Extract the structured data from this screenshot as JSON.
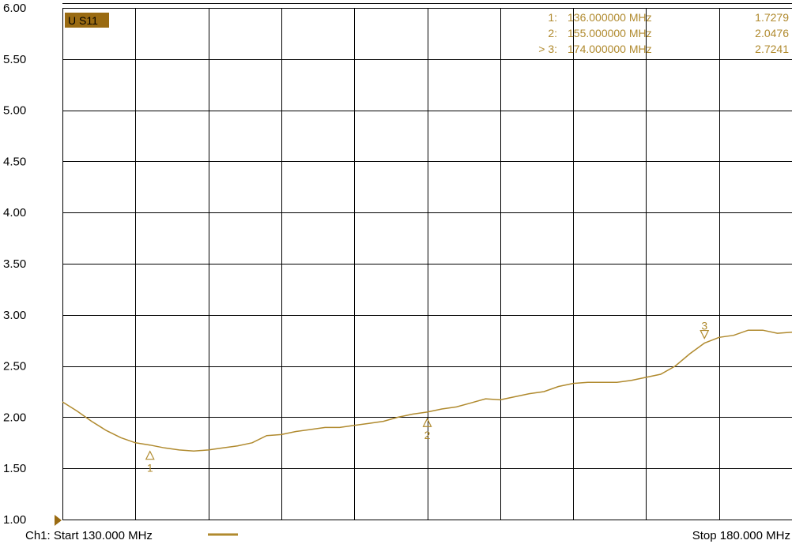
{
  "colors": {
    "trace": "#b08a2e",
    "grid": "#000000",
    "badge_bg": "#9a6b12",
    "background": "#ffffff"
  },
  "trace_badge": "U S11",
  "footer": {
    "start": "Ch1: Start  130.000 MHz",
    "stop": "Stop  180.000 MHz"
  },
  "markers": [
    {
      "num": "1:",
      "freq": "136.000000 MHz",
      "value": "1.7279",
      "active": false
    },
    {
      "num": "2:",
      "freq": "155.000000 MHz",
      "value": "2.0476",
      "active": false
    },
    {
      "num": "> 3:",
      "freq": "174.000000 MHz",
      "value": "2.7241",
      "active": true
    }
  ],
  "chart_data": {
    "type": "line",
    "title": "",
    "xlabel": "",
    "ylabel": "",
    "xlim": [
      130,
      180
    ],
    "ylim": [
      1.0,
      6.0
    ],
    "yticks": [
      "1.00",
      "1.50",
      "2.00",
      "2.50",
      "3.00",
      "3.50",
      "4.00",
      "4.50",
      "5.00",
      "5.50",
      "6.00"
    ],
    "grid": true,
    "x_divisions": 10,
    "series": [
      {
        "x": [
          130,
          131,
          132,
          133,
          134,
          135,
          136,
          137,
          138,
          139,
          140,
          141,
          142,
          143,
          144,
          145,
          146,
          147,
          148,
          149,
          150,
          151,
          152,
          153,
          154,
          155,
          156,
          157,
          158,
          159,
          160,
          161,
          162,
          163,
          164,
          165,
          166,
          167,
          168,
          169,
          170,
          171,
          172,
          173,
          174,
          175,
          176,
          177,
          178,
          179,
          180
        ],
        "y": [
          2.15,
          2.06,
          1.96,
          1.87,
          1.8,
          1.75,
          1.728,
          1.7,
          1.68,
          1.67,
          1.68,
          1.7,
          1.72,
          1.75,
          1.82,
          1.83,
          1.86,
          1.88,
          1.9,
          1.9,
          1.92,
          1.94,
          1.96,
          2.0,
          2.03,
          2.05,
          2.08,
          2.1,
          2.14,
          2.18,
          2.17,
          2.2,
          2.23,
          2.25,
          2.3,
          2.33,
          2.34,
          2.34,
          2.34,
          2.36,
          2.39,
          2.42,
          2.5,
          2.62,
          2.724,
          2.78,
          2.8,
          2.85,
          2.85,
          2.82,
          2.83
        ]
      }
    ],
    "marker_points": [
      {
        "label": "1",
        "x": 136,
        "y": 1.7279,
        "direction": "up"
      },
      {
        "label": "2",
        "x": 155,
        "y": 2.0476,
        "direction": "up"
      },
      {
        "label": "3",
        "x": 174,
        "y": 2.7241,
        "direction": "down"
      }
    ]
  }
}
